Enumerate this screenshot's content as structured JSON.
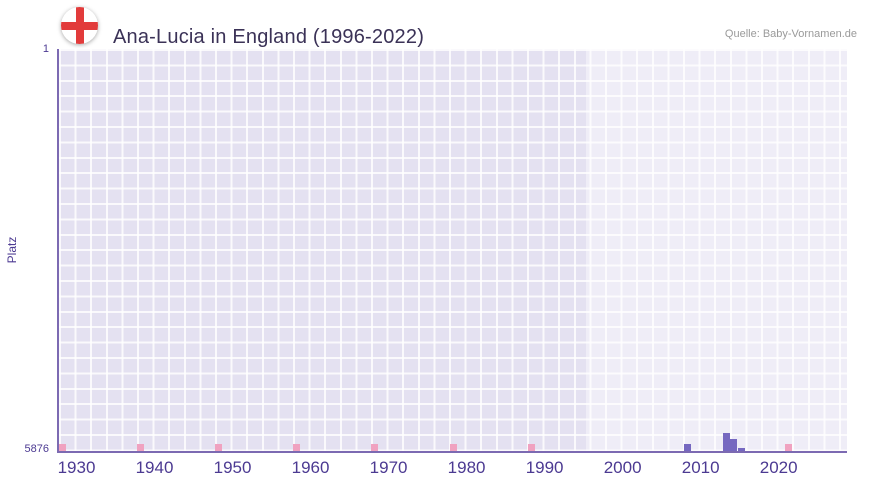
{
  "header": {
    "title": "Ana-Lucia in England (1996-2022)",
    "source": "Quelle: Baby-Vornamen.de"
  },
  "chart_data": {
    "type": "bar",
    "title": "Ana-Lucia in England (1996-2022)",
    "xlabel": "",
    "ylabel": "Platz",
    "y_axis": {
      "top_label": "1",
      "bottom_label": "5876",
      "min": 1,
      "max": 5876,
      "inverted": true
    },
    "x_axis": {
      "tick_labels": [
        "1930",
        "1940",
        "1950",
        "1960",
        "1970",
        "1980",
        "1990",
        "2000",
        "2010",
        "2020"
      ],
      "year_min": 1927.5,
      "year_max": 2028.5,
      "grid": true
    },
    "highlight_range": {
      "from": 1995,
      "to": 2028.5
    },
    "colors": {
      "bar": "#7668c0",
      "no_rank_marker": "#f0a2c0",
      "plot_bg": "#e4e1f1",
      "grid": "#ffffff",
      "axis": "#7c6ab2",
      "tick_text": "#4c3a92"
    },
    "series": [
      {
        "name": "Platz",
        "points": [
          {
            "year": 2008,
            "rank": 5770
          },
          {
            "year": 2013,
            "rank": 5620
          },
          {
            "year": 2014,
            "rank": 5700
          },
          {
            "year": 2015,
            "rank": 5830
          }
        ]
      }
    ],
    "no_rank_marker_years": [
      1928,
      1938,
      1948,
      1958,
      1968,
      1978,
      1988,
      2021
    ],
    "legend": "none"
  }
}
